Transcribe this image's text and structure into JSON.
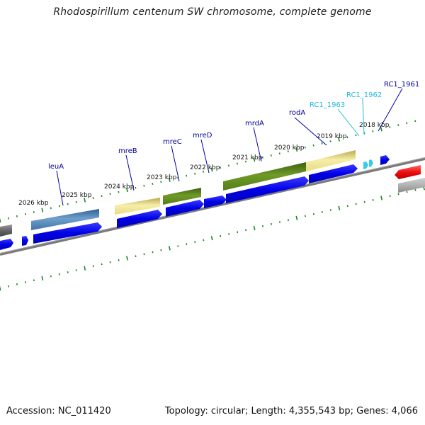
{
  "title": "Rhodospirillum centenum SW chromosome, complete genome",
  "accession_text": "Accession: NC_011420",
  "summary_text": "Topology: circular; Length: 4,355,543 bp; Genes: 4,066",
  "colors": {
    "forward_cds": "#0000ee",
    "reverse_cds": "#0000ee",
    "light_arrow": "#33ccee",
    "backbone": "#7a7a7a",
    "tick": "#1a8a1a",
    "label_dark": "#000099",
    "label_light": "#22bbdd",
    "steelblue_feature": "#4a7fb0",
    "khaki_feature": "#eee48f",
    "olive_feature": "#5c861a",
    "red_feature": "#ee1111",
    "gray_feature": "#aaaaaa"
  },
  "kbp_labels": [
    "2026 kbp",
    "2025 kbp",
    "2024 kbp",
    "2023 kbp",
    "2022 kbp",
    "2021 kbp",
    "2020 kbp",
    "2019 kbp",
    "2018 kbp"
  ],
  "gene_labels": [
    {
      "name": "leuA",
      "tone": "dark"
    },
    {
      "name": "mreB",
      "tone": "dark"
    },
    {
      "name": "mreC",
      "tone": "dark"
    },
    {
      "name": "mreD",
      "tone": "dark"
    },
    {
      "name": "mrdA",
      "tone": "dark"
    },
    {
      "name": "rodA",
      "tone": "dark"
    },
    {
      "name": "RC1_1963",
      "tone": "light"
    },
    {
      "name": "RC1_1962",
      "tone": "light"
    },
    {
      "name": "RC1_1961",
      "tone": "dark"
    }
  ]
}
